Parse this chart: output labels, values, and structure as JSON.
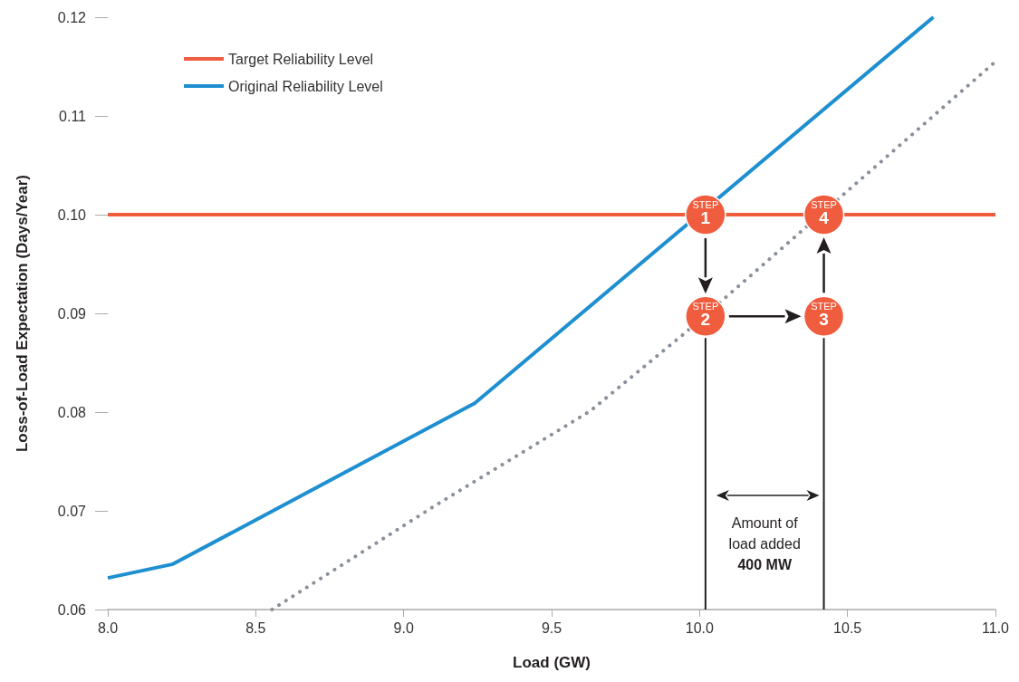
{
  "chart_data": {
    "type": "line",
    "xlabel": "Load (GW)",
    "ylabel": "Loss-of-Load Expectation (Days/Year)",
    "xlim": [
      8.0,
      11.0
    ],
    "xticks": [
      {
        "value": 8,
        "label": "8.0"
      },
      8.5,
      {
        "value": 9,
        "label": "9.0"
      },
      9.5,
      {
        "value": 10,
        "label": "10.0"
      },
      10.5,
      {
        "value": 11,
        "label": "11.0"
      }
    ],
    "ylim": [
      0.06,
      0.12
    ],
    "yticks": [
      0.06,
      0.07,
      0.08,
      0.09,
      {
        "value": 0.1,
        "label": "0.10"
      },
      0.11,
      0.12
    ],
    "grid": false,
    "legend": "top left",
    "marker": "none",
    "series": [
      {
        "name": "Target Reliability Level",
        "color": "#f05d3e",
        "x": [
          8.0,
          11.0
        ],
        "values": [
          0.1,
          0.1
        ]
      },
      {
        "name": "Original Reliability Level",
        "color": "#1e8fd0",
        "x": [
          8.0,
          8.22,
          9.24,
          10.79
        ],
        "values": [
          0.0632,
          0.0646,
          0.0809,
          0.12
        ]
      },
      {
        "color": "#8a9099",
        "line_style": "dotted",
        "x": [
          8.555,
          9.11,
          9.63,
          9.95,
          11.0
        ],
        "values": [
          0.06,
          0.0706,
          0.0801,
          0.088,
          0.1155
        ]
      },
      {
        "color": "#231f20",
        "x": [
          10.02,
          10.02
        ],
        "values": [
          0.06,
          0.0875
        ]
      },
      {
        "color": "#231f20",
        "x": [
          10.42,
          10.42
        ],
        "values": [
          0.06,
          0.0875
        ]
      }
    ],
    "annotations": [
      "STEP\n1",
      "STEP\n2",
      "STEP\n3",
      "STEP\n4",
      "Amount of\nload added\n400 MW"
    ]
  }
}
